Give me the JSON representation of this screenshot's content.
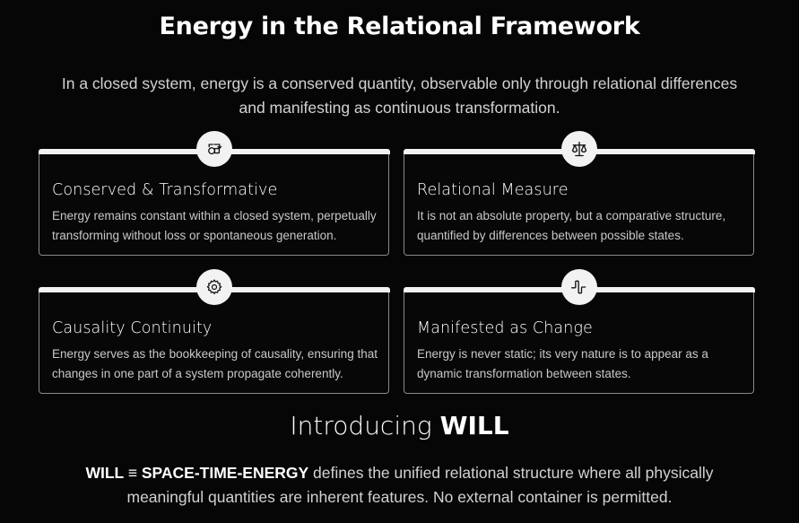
{
  "title": "Energy in the Relational Framework",
  "intro": "In a closed system, energy is a conserved quantity, observable only through relational differences and manifesting as continuous transformation.",
  "cards": [
    {
      "icon": "exchange-icon",
      "title": "Conserved & Transformative",
      "body": "Energy remains constant within a closed system, perpetually transforming without loss or spontaneous generation."
    },
    {
      "icon": "scale-icon",
      "title": "Relational Measure",
      "body": "It is not an absolute property, but a comparative structure, quantified by differences between possible states."
    },
    {
      "icon": "gear-icon",
      "title": "Causality Continuity",
      "body": "Energy serves as the bookkeeping of causality, ensuring that changes in one part of a system propagate coherently."
    },
    {
      "icon": "signal-pulse-icon",
      "title": "Manifested as Change",
      "body": "Energy is never static; its very nature is to appear as a dynamic transformation between states."
    }
  ],
  "will_section": {
    "heading_prefix": "Introducing",
    "heading_bold": "WILL",
    "statement_bold": "WILL ≡ SPACE-TIME-ENERGY",
    "statement_rest": " defines the unified relational structure where all physically meaningful quantities are inherent features. No external container is permitted."
  }
}
